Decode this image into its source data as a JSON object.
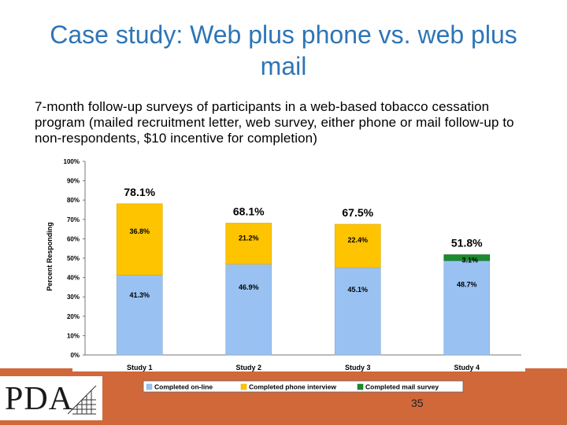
{
  "slide": {
    "title": "Case study: Web plus phone vs. web plus mail",
    "subtitle": "7-month follow-up surveys of participants in a web-based tobacco cessation program (mailed recruitment letter, web survey, either phone or mail follow-up to non-respondents, $10 incentive for completion)",
    "page_number": "35",
    "logo_text": "PDA"
  },
  "colors": {
    "online": "#99c2f2",
    "phone": "#ffc400",
    "mail": "#1c8a2e",
    "title": "#2e75b6",
    "footer": "#d0683a"
  },
  "chart_data": {
    "type": "bar",
    "stacked": true,
    "categories": [
      "Study 1",
      "Study 2",
      "Study 3",
      "Study 4"
    ],
    "series": [
      {
        "name": "Completed on-line",
        "values": [
          41.3,
          46.9,
          45.1,
          48.7
        ],
        "labels": [
          "41.3%",
          "46.9%",
          "45.1%",
          "48.7%"
        ]
      },
      {
        "name": "Completed phone interview",
        "values": [
          36.8,
          21.2,
          22.4,
          0
        ],
        "labels": [
          "36.8%",
          "21.2%",
          "22.4%",
          ""
        ]
      },
      {
        "name": "Completed mail survey",
        "values": [
          0,
          0,
          0,
          3.1
        ],
        "labels": [
          "",
          "",
          "",
          "3.1%"
        ]
      }
    ],
    "totals": [
      "78.1%",
      "68.1%",
      "67.5%",
      "51.8%"
    ],
    "ylabel": "Percent Responding",
    "ylim": [
      0,
      100
    ],
    "yticks": [
      "0%",
      "10%",
      "20%",
      "30%",
      "40%",
      "50%",
      "60%",
      "70%",
      "80%",
      "90%",
      "100%"
    ],
    "grid": false,
    "legend": "bottom"
  }
}
